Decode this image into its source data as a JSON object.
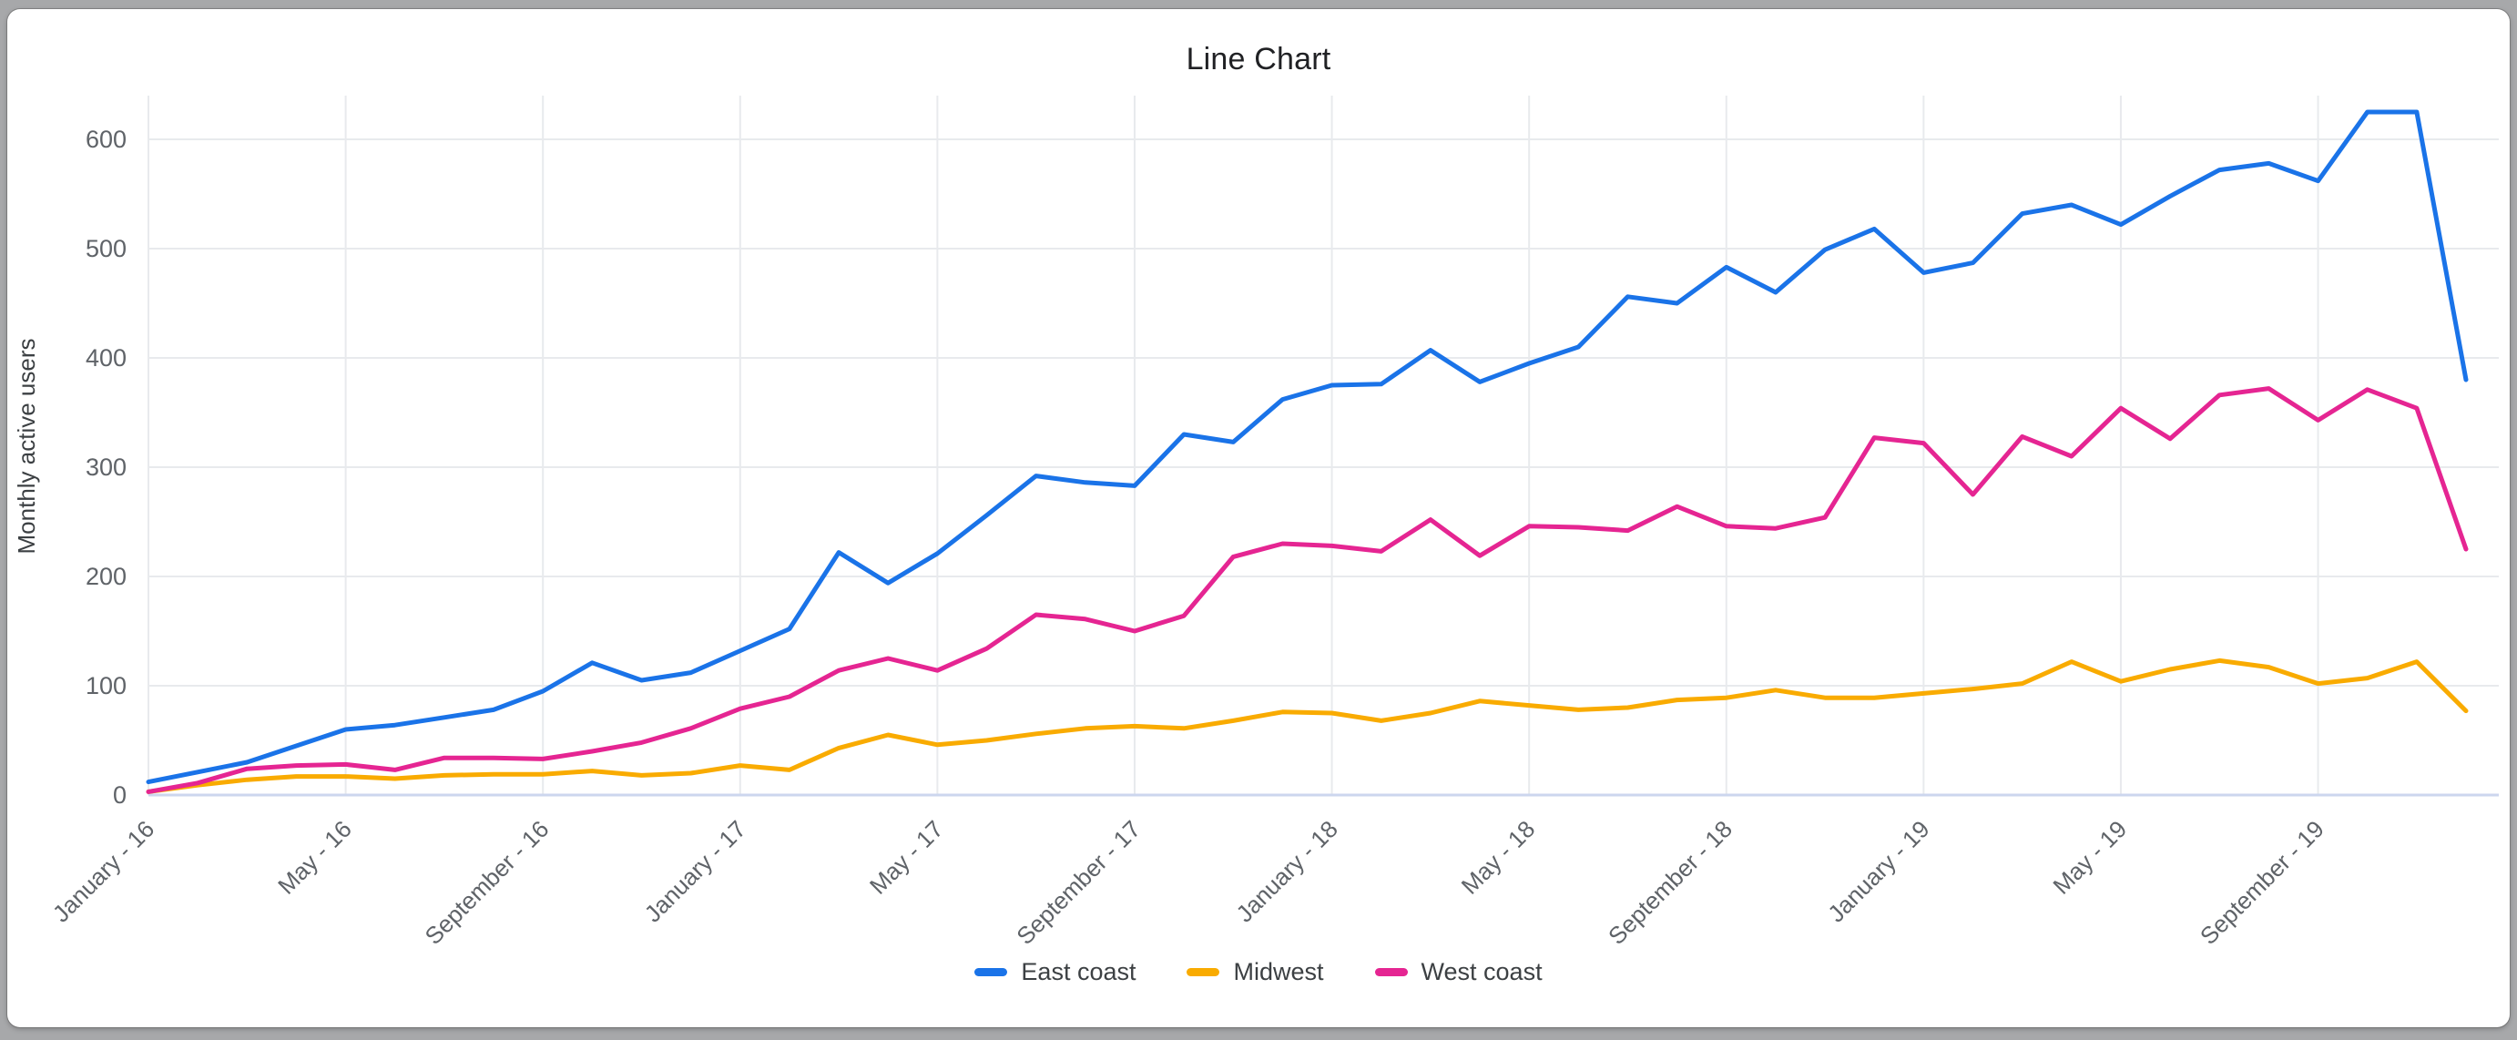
{
  "chart": {
    "title": "Line Chart",
    "ylabel": "Monthly active users"
  },
  "colors": {
    "east_coast": "#1a73e8",
    "midwest": "#f9ab00",
    "west_coast": "#e52592",
    "grid": "#e8eaed",
    "baseline": "#ccd6ee",
    "tick_text": "#5f6368",
    "title_text": "#202124",
    "card_bg": "#ffffff",
    "surround_bg": "#a7a8aa"
  },
  "chart_data": {
    "type": "line",
    "title": "Line Chart",
    "xlabel": "",
    "ylabel": "Monthly active users",
    "ylim": [
      0,
      600
    ],
    "y_ticks": [
      0,
      100,
      200,
      300,
      400,
      500,
      600
    ],
    "grid": true,
    "legend_position": "bottom",
    "x_tick_labels": [
      "January - 16",
      "May - 16",
      "September - 16",
      "January - 17",
      "May - 17",
      "September - 17",
      "January - 18",
      "May - 18",
      "September - 18",
      "January - 19",
      "May - 19",
      "September - 19"
    ],
    "x_tick_month_indices": [
      0,
      4,
      8,
      12,
      16,
      20,
      24,
      28,
      32,
      36,
      40,
      44
    ],
    "n_points": 48,
    "series": [
      {
        "name": "East coast",
        "color": "#1a73e8",
        "values": [
          12,
          21,
          30,
          45,
          60,
          64,
          71,
          78,
          95,
          121,
          105,
          112,
          132,
          152,
          222,
          194,
          221,
          256,
          292,
          286,
          283,
          330,
          323,
          362,
          375,
          376,
          407,
          378,
          395,
          410,
          456,
          450,
          483,
          460,
          499,
          518,
          478,
          487,
          532,
          540,
          522,
          548,
          572,
          578,
          562,
          625,
          625,
          380
        ]
      },
      {
        "name": "Midwest",
        "color": "#f9ab00",
        "values": [
          3,
          9,
          14,
          17,
          17,
          15,
          18,
          19,
          19,
          22,
          18,
          20,
          27,
          23,
          43,
          55,
          46,
          50,
          56,
          61,
          63,
          61,
          68,
          76,
          75,
          68,
          75,
          86,
          82,
          78,
          80,
          87,
          89,
          96,
          89,
          89,
          93,
          97,
          102,
          122,
          104,
          115,
          123,
          117,
          102,
          107,
          122,
          77
        ]
      },
      {
        "name": "West coast",
        "color": "#e52592",
        "values": [
          3,
          11,
          24,
          27,
          28,
          23,
          34,
          34,
          33,
          40,
          48,
          61,
          79,
          90,
          114,
          125,
          114,
          134,
          165,
          161,
          150,
          164,
          218,
          230,
          228,
          223,
          252,
          219,
          246,
          245,
          242,
          264,
          246,
          244,
          254,
          327,
          322,
          275,
          328,
          310,
          354,
          326,
          366,
          372,
          343,
          371,
          354,
          225
        ]
      }
    ]
  }
}
